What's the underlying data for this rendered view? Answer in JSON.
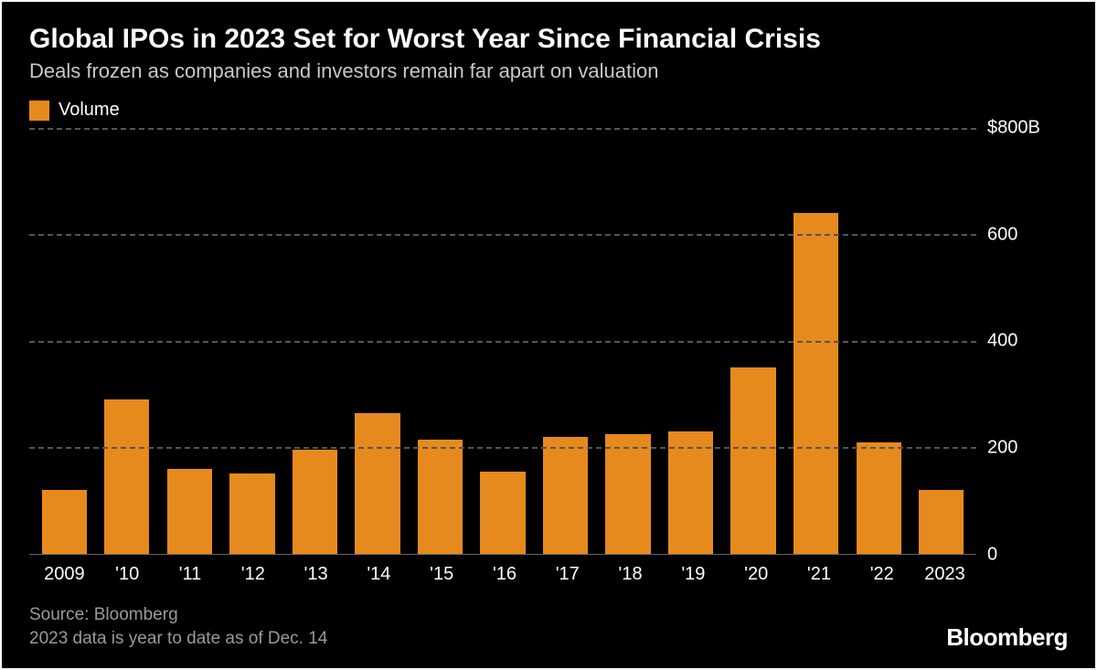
{
  "chart": {
    "type": "bar",
    "title": "Global IPOs in 2023 Set for Worst Year Since Financial Crisis",
    "subtitle": "Deals frozen as companies and investors remain far apart on valuation",
    "legend": {
      "label": "Volume",
      "swatch_color": "#e68a1e"
    },
    "background_color": "#000000",
    "text_color": "#ffffff",
    "subtitle_color": "#c8c8c8",
    "grid_color": "#555555",
    "bar_color": "#e68a1e",
    "title_fontsize": 30,
    "subtitle_fontsize": 22,
    "axis_fontsize": 20,
    "y": {
      "min": 0,
      "max": 800,
      "ticks": [
        {
          "value": 0,
          "label": "0"
        },
        {
          "value": 200,
          "label": "200"
        },
        {
          "value": 400,
          "label": "400"
        },
        {
          "value": 600,
          "label": "600"
        },
        {
          "value": 800,
          "label": "$800B"
        }
      ]
    },
    "categories": [
      "2009",
      "'10",
      "'11",
      "'12",
      "'13",
      "'14",
      "'15",
      "'16",
      "'17",
      "'18",
      "'19",
      "'20",
      "'21",
      "'22",
      "2023"
    ],
    "values": [
      120,
      290,
      160,
      150,
      195,
      265,
      215,
      155,
      220,
      225,
      230,
      350,
      640,
      210,
      120
    ]
  },
  "footer": {
    "source": "Source: Bloomberg",
    "note": "2023 data is year to date as of Dec. 14",
    "brand": "Bloomberg",
    "text_color": "#9a9a9a",
    "brand_color": "#ffffff"
  }
}
